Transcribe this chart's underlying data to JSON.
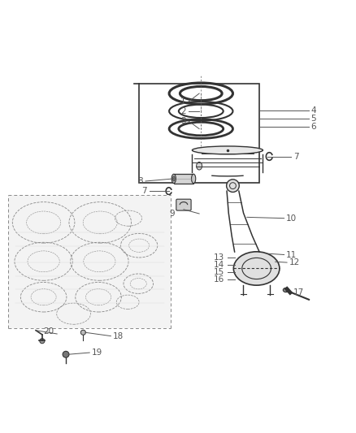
{
  "bg_color": "#ffffff",
  "line_color": "#555555",
  "part_color": "#333333",
  "gray_color": "#888888"
}
